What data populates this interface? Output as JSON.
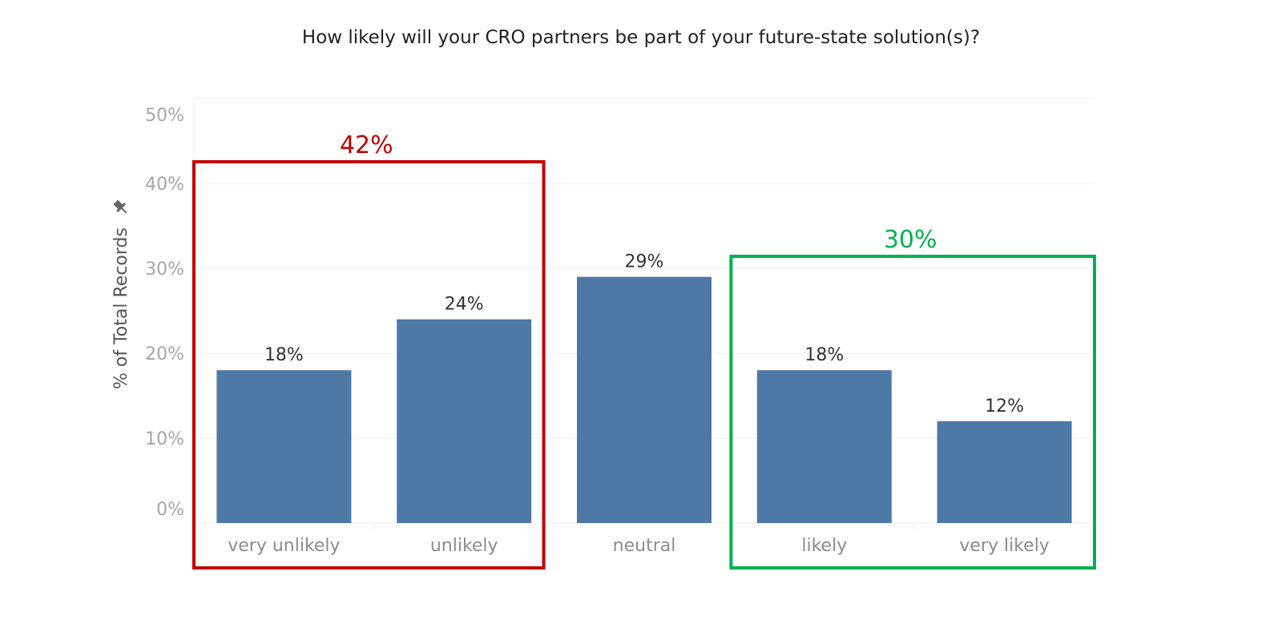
{
  "chart_data": {
    "type": "bar",
    "title": "How likely will your CRO partners be part of your future-state solution(s)?",
    "xlabel": "",
    "ylabel": "% of Total Records",
    "ylim": [
      0,
      50
    ],
    "ytick_values": [
      0,
      10,
      20,
      30,
      40,
      50
    ],
    "ytick_labels": [
      "0%",
      "10%",
      "20%",
      "30%",
      "40%",
      "50%"
    ],
    "categories": [
      "very unlikely",
      "unlikely",
      "neutral",
      "likely",
      "very likely"
    ],
    "values": [
      18,
      24,
      29,
      18,
      12
    ],
    "value_labels": [
      "18%",
      "24%",
      "29%",
      "18%",
      "12%"
    ],
    "bar_color": "#4e79a7",
    "groups": [
      {
        "label": "42%",
        "categories": [
          "very unlikely",
          "unlikely"
        ],
        "color": "#c00000"
      },
      {
        "label": "30%",
        "categories": [
          "likely",
          "very likely"
        ],
        "color": "#00b050"
      }
    ]
  }
}
